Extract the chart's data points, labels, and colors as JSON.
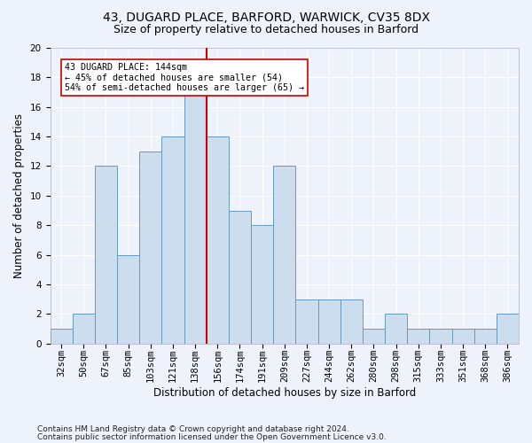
{
  "title1": "43, DUGARD PLACE, BARFORD, WARWICK, CV35 8DX",
  "title2": "Size of property relative to detached houses in Barford",
  "xlabel": "Distribution of detached houses by size in Barford",
  "ylabel": "Number of detached properties",
  "bar_labels": [
    "32sqm",
    "50sqm",
    "67sqm",
    "85sqm",
    "103sqm",
    "121sqm",
    "138sqm",
    "156sqm",
    "174sqm",
    "191sqm",
    "209sqm",
    "227sqm",
    "244sqm",
    "262sqm",
    "280sqm",
    "298sqm",
    "315sqm",
    "333sqm",
    "351sqm",
    "368sqm",
    "386sqm"
  ],
  "bar_values": [
    1,
    2,
    12,
    6,
    13,
    14,
    17,
    14,
    9,
    8,
    12,
    3,
    3,
    3,
    1,
    2,
    1,
    1,
    1,
    1,
    2
  ],
  "bar_color": "#ccdded",
  "bar_edge_color": "#6699bb",
  "vline_x": 6.5,
  "vline_color": "#cc0000",
  "annotation_text": "43 DUGARD PLACE: 144sqm\n← 45% of detached houses are smaller (54)\n54% of semi-detached houses are larger (65) →",
  "annotation_box_color": "#ffffff",
  "annotation_box_edge": "#cc0000",
  "ylim": [
    0,
    20
  ],
  "yticks": [
    0,
    2,
    4,
    6,
    8,
    10,
    12,
    14,
    16,
    18,
    20
  ],
  "footnote1": "Contains HM Land Registry data © Crown copyright and database right 2024.",
  "footnote2": "Contains public sector information licensed under the Open Government Licence v3.0.",
  "bg_color": "#eef2fb",
  "grid_color": "#ffffff",
  "title1_fontsize": 10,
  "title2_fontsize": 9,
  "axis_label_fontsize": 8.5,
  "tick_fontsize": 7.5,
  "footnote_fontsize": 6.5
}
